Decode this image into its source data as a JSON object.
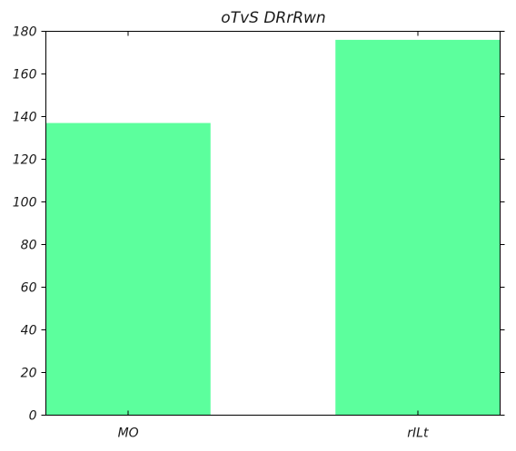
{
  "chart_data": {
    "type": "bar",
    "title": "oTvS DRrRwn",
    "categories": [
      "MO",
      "rILt"
    ],
    "values": [
      137,
      176
    ],
    "xlabel": "",
    "ylabel": "",
    "ylim": [
      0,
      180
    ],
    "yticks": [
      0,
      20,
      40,
      60,
      80,
      100,
      120,
      140,
      160,
      180
    ],
    "bar_color": "#5cff9d",
    "grid": false,
    "legend": false
  }
}
